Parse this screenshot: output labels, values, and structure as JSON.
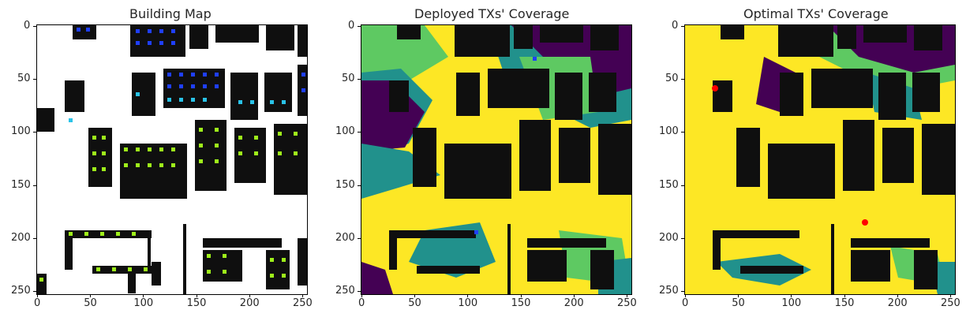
{
  "panels": [
    {
      "title": "Building Map"
    },
    {
      "title": "Deployed TXs' Coverage"
    },
    {
      "title": "Optimal TXs' Coverage"
    }
  ],
  "x_ticks": [
    "0",
    "50",
    "100",
    "150",
    "200",
    "250"
  ],
  "y_ticks": [
    "0",
    "50",
    "100",
    "150",
    "200",
    "250"
  ],
  "colors": {
    "building": "#0f0f0f",
    "coverage_high": "#fde725",
    "coverage_mid": "#5ec962",
    "coverage_low": "#21918c",
    "coverage_none": "#440154",
    "tx_marker": "#ff0000"
  }
}
